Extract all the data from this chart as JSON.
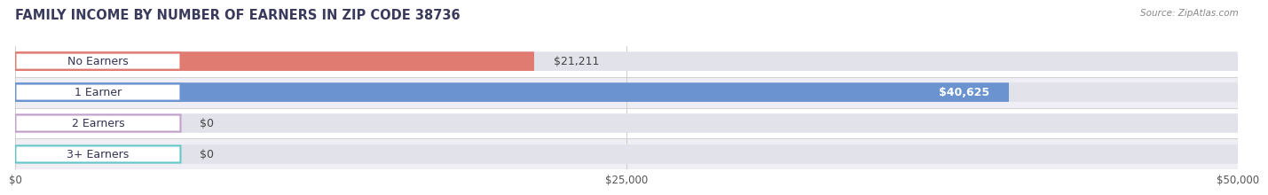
{
  "title": "FAMILY INCOME BY NUMBER OF EARNERS IN ZIP CODE 38736",
  "source": "Source: ZipAtlas.com",
  "categories": [
    "No Earners",
    "1 Earner",
    "2 Earners",
    "3+ Earners"
  ],
  "values": [
    21211,
    40625,
    0,
    0
  ],
  "bar_colors": [
    "#E07B72",
    "#6A93D0",
    "#C4A0CC",
    "#65C8C8"
  ],
  "value_labels": [
    "$21,211",
    "$40,625",
    "$0",
    "$0"
  ],
  "xlim": [
    0,
    50000
  ],
  "xticks": [
    0,
    25000,
    50000
  ],
  "xtick_labels": [
    "$0",
    "$25,000",
    "$50,000"
  ],
  "row_bg_colors": [
    "#FFFFFF",
    "#EEEEF4",
    "#FFFFFF",
    "#EEEEF4"
  ],
  "bar_track_color": "#E2E2EA",
  "title_fontsize": 10.5,
  "bar_height": 0.62,
  "label_fontsize": 9,
  "value_fontsize": 9,
  "title_color": "#3A3A5C",
  "source_color": "#888888",
  "tick_color": "#555555",
  "value_label_outside_color": "#444444",
  "value_label_inside_color": "#FFFFFF"
}
